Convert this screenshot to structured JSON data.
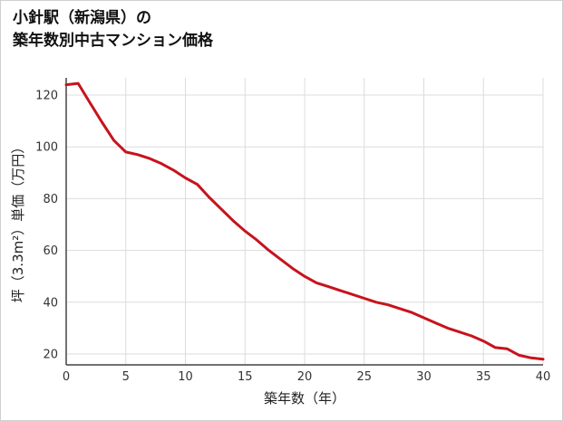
{
  "chart_data": {
    "type": "line",
    "title_lines": [
      "小針駅（新潟県）の",
      "築年数別中古マンション価格"
    ],
    "xlabel": "築年数（年）",
    "ylabel": "坪（3.3m²）単価（万円）",
    "x": [
      0,
      1,
      2,
      3,
      4,
      5,
      6,
      7,
      8,
      9,
      10,
      11,
      12,
      13,
      14,
      15,
      16,
      17,
      18,
      19,
      20,
      21,
      22,
      23,
      24,
      25,
      26,
      27,
      28,
      29,
      30,
      31,
      32,
      33,
      34,
      35,
      36,
      37,
      38,
      39,
      40
    ],
    "y": [
      124,
      124.5,
      117,
      109.5,
      102.5,
      98,
      97,
      95.5,
      93.5,
      91,
      88,
      85.5,
      80.5,
      76,
      71.5,
      67.5,
      64,
      60,
      56.5,
      53,
      50,
      47.5,
      46,
      44.5,
      43,
      41.5,
      40,
      39,
      37.5,
      36,
      34,
      32,
      30,
      28.5,
      27,
      25,
      22.5,
      22,
      19.5,
      18.5,
      18
    ],
    "xticks": [
      0,
      5,
      10,
      15,
      20,
      25,
      30,
      35,
      40
    ],
    "yticks": [
      20,
      40,
      60,
      80,
      100,
      120
    ],
    "xlim": [
      0,
      40
    ],
    "ylim": [
      14,
      126
    ],
    "grid": true,
    "legend": "none",
    "line_color": "#c7131d",
    "grid_color": "#dcdcdc",
    "axis_color": "#444444",
    "tick_text_color": "#333333",
    "axis_title_color": "#222222"
  }
}
